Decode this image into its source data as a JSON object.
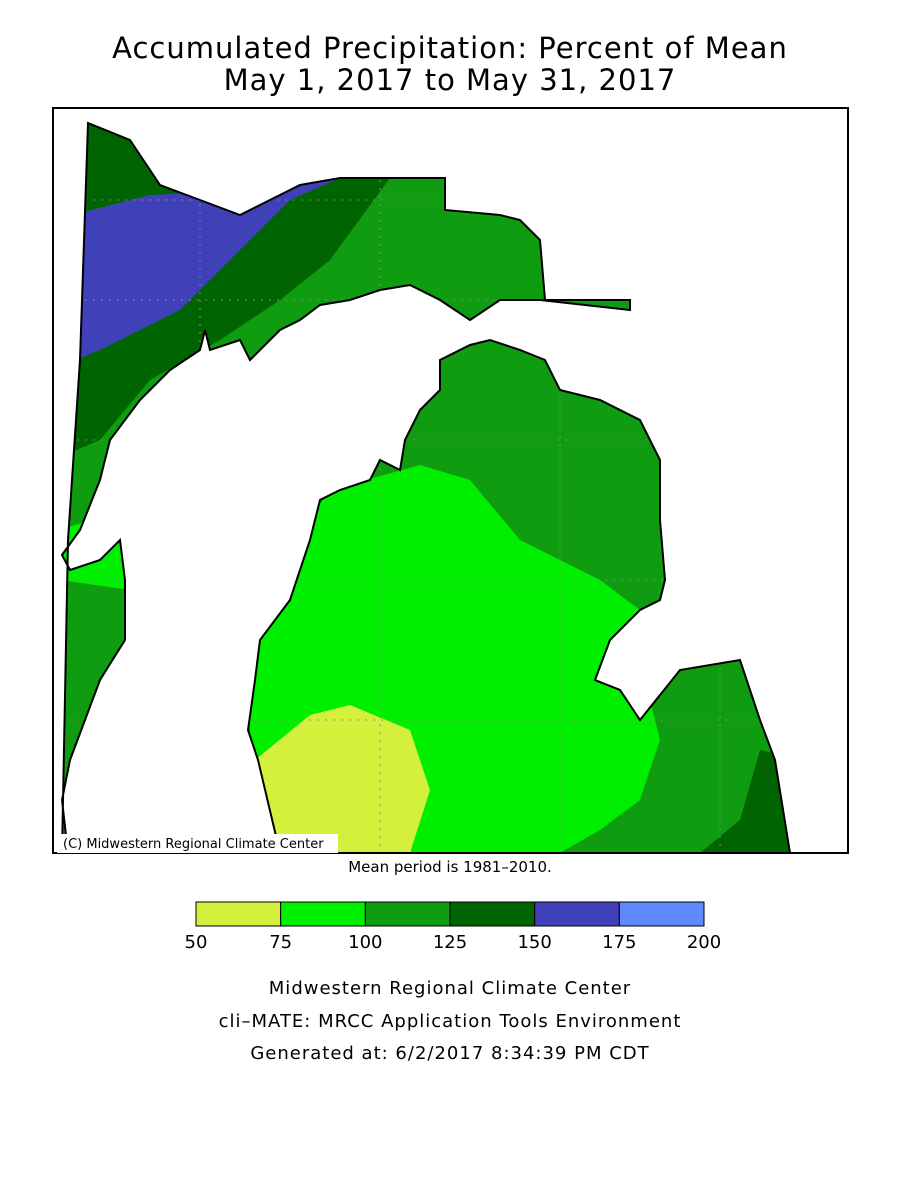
{
  "title": [
    "Accumulated Precipitation: Percent of Mean",
    "May 1, 2017 to May 31, 2017"
  ],
  "copyright": "(C) Midwestern Regional Climate Center",
  "note": "Mean period is 1981–2010.",
  "legend": {
    "bins": [
      50,
      75,
      100,
      125,
      150,
      175,
      200
    ],
    "colors": [
      "#d4ef3c",
      "#00ee00",
      "#109c10",
      "#006400",
      "#4040b8",
      "#6088ff"
    ]
  },
  "footer": [
    "Midwestern Regional Climate Center",
    "cli–MATE: MRCC Application Tools Environment",
    "Generated at: 6/2/2017 8:34:39 PM CDT"
  ]
}
